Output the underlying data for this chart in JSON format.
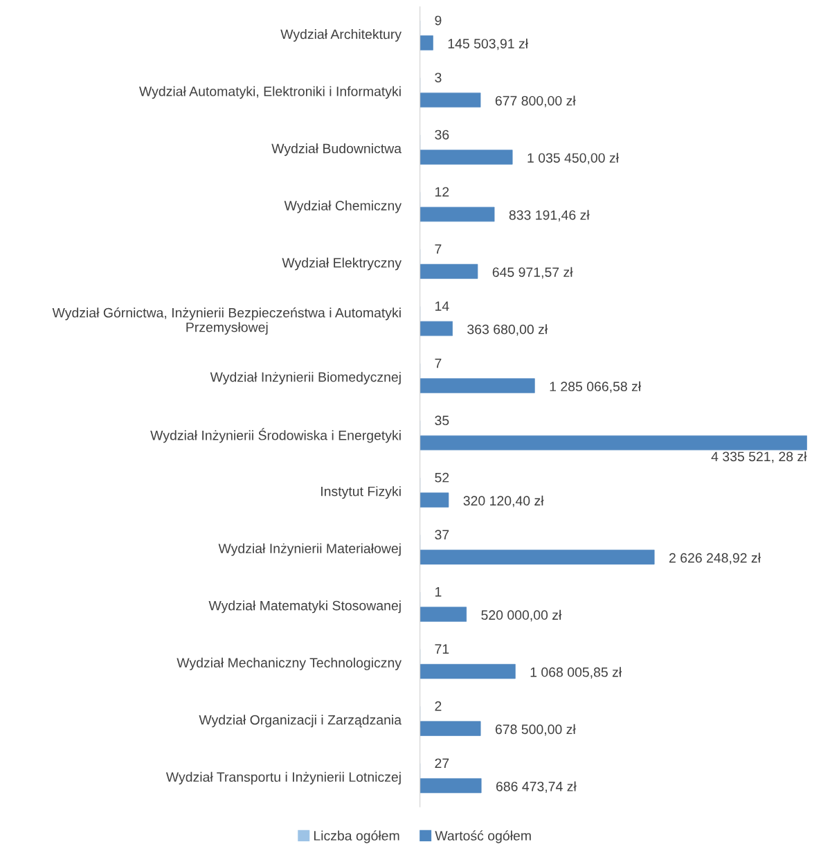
{
  "chart_data": {
    "type": "bar",
    "orientation": "horizontal",
    "legend": "bottom",
    "grid": false,
    "categories": [
      "Wydział Architektury",
      "Wydział Automatyki, Elektroniki i Informatyki",
      "Wydział Budownictwa",
      "Wydział Chemiczny",
      "Wydział Elektryczny",
      "Wydział Górnictwa, Inżynierii Bezpieczeństwa i Automatyki Przemysłowej",
      "Wydział Inżynierii Biomedycznej",
      "Wydział Inżynierii Środowiska i Energetyki",
      "Instytut Fizyki",
      "Wydział Inżynierii Materiałowej",
      "Wydział Matematyki Stosowanej",
      "Wydział Mechaniczny Technologiczny",
      "Wydział Organizacji i Zarządzania",
      "Wydział Transportu i Inżynierii Lotniczej"
    ],
    "series": [
      {
        "name": "Liczba ogółem",
        "color": "#9dc3e6",
        "values": [
          9,
          3,
          36,
          12,
          7,
          14,
          7,
          35,
          52,
          37,
          1,
          71,
          2,
          27
        ],
        "value_labels": [
          "9",
          "3",
          "36",
          "12",
          "7",
          "14",
          "7",
          "35",
          "52",
          "37",
          "1",
          "71",
          "2",
          "27"
        ]
      },
      {
        "name": "Wartość ogółem",
        "color": "#4e86bf",
        "values": [
          145503.91,
          677800,
          1035450,
          833191.46,
          645971.57,
          363680,
          1285066.58,
          4335521.28,
          320120.4,
          2626248.92,
          520000,
          1068005.85,
          678500,
          686473.74
        ],
        "value_labels": [
          "145 503,91 zł",
          "677 800,00 zł",
          "1 035 450,00 zł",
          "833 191,46 zł",
          "645 971,57 zł",
          "363 680,00 zł",
          "1 285 066,58 zł",
          "4 335 521, 28 zł",
          "320 120,40 zł",
          "2 626 248,92 zł",
          "520 000,00 zł",
          "1 068 005,85 zł",
          "678 500,00 zł",
          "686 473,74 zł"
        ]
      }
    ]
  }
}
